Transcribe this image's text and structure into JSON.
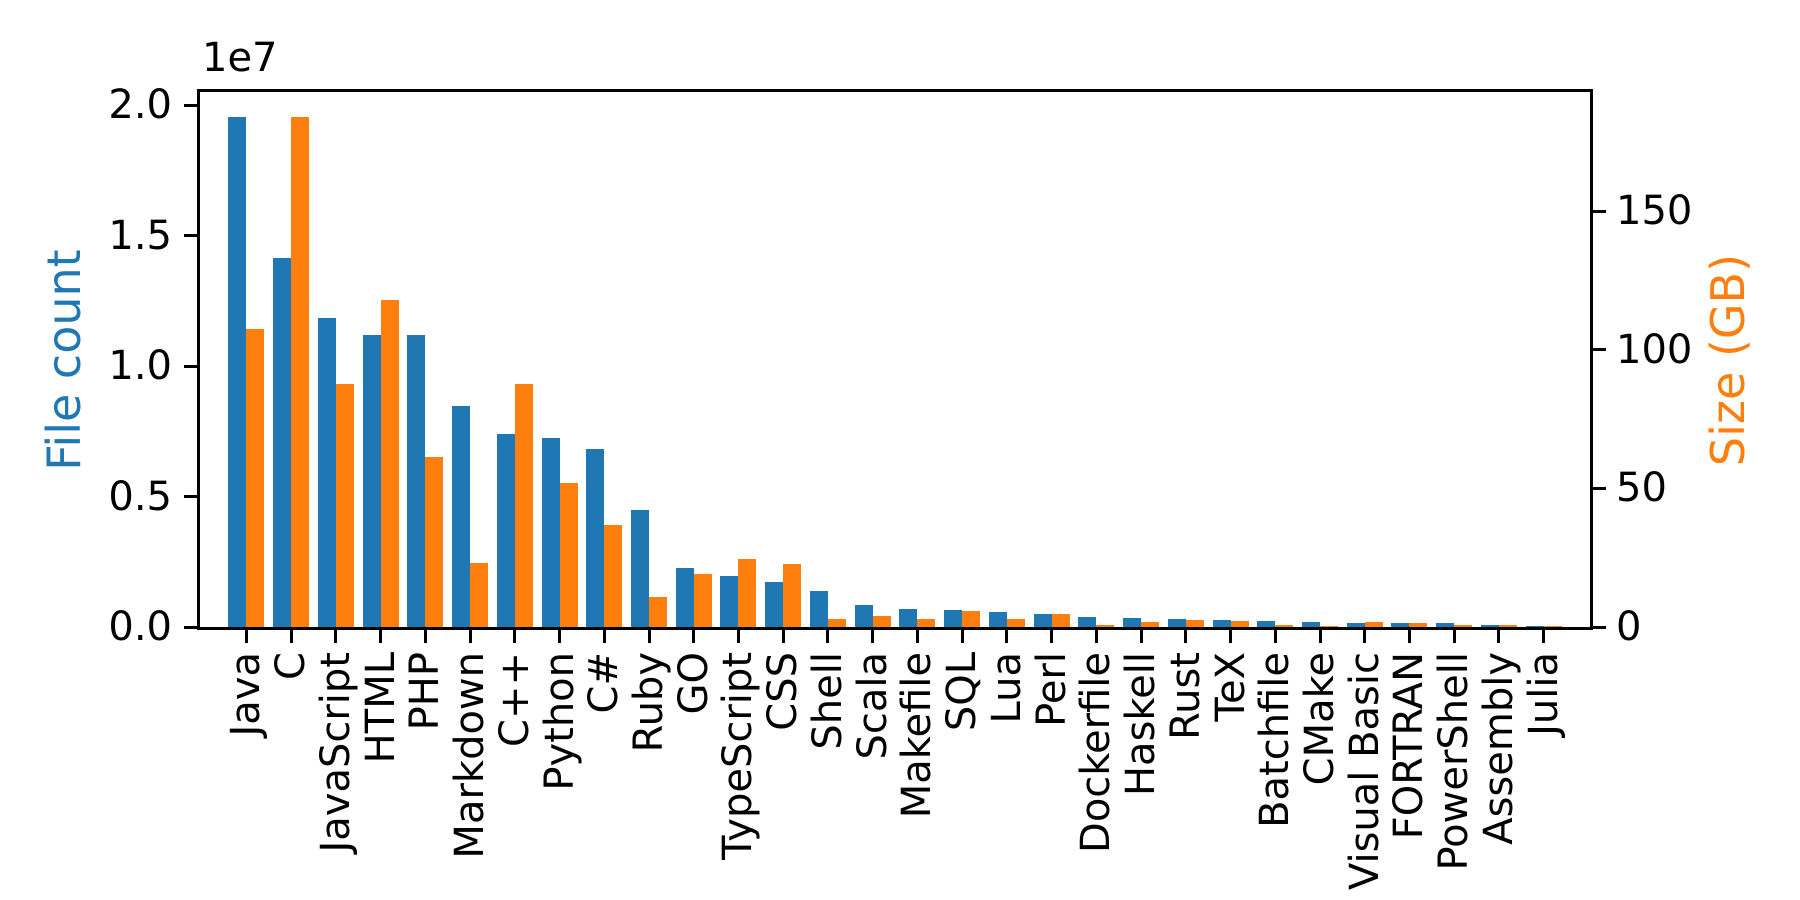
{
  "chart_data": {
    "type": "bar",
    "title": "",
    "xlabel": "",
    "grid": false,
    "legend": null,
    "background_color": "#ffffff",
    "spine_color": "#000000",
    "tick_label_color": "#000000",
    "categories": [
      "Java",
      "C",
      "JavaScript",
      "HTML",
      "PHP",
      "Markdown",
      "C++",
      "Python",
      "C#",
      "Ruby",
      "GO",
      "TypeScript",
      "CSS",
      "Shell",
      "Scala",
      "Makefile",
      "SQL",
      "Lua",
      "Perl",
      "Dockerfile",
      "Haskell",
      "Rust",
      "TeX",
      "Batchfile",
      "CMake",
      "Visual Basic",
      "FORTRAN",
      "PowerShell",
      "Assembly",
      "Julia"
    ],
    "series": [
      {
        "name": "File count",
        "axis": "left",
        "color": "#1f77b4",
        "values": [
          19548190,
          14143113,
          11839883,
          11178557,
          11177610,
          8464626,
          7380520,
          7226626,
          6811652,
          4473331,
          2265436,
          1940406,
          1734406,
          1385648,
          835755,
          679430,
          656671,
          578554,
          497949,
          366505,
          340623,
          322431,
          251015,
          236945,
          175282,
          155652,
          142038,
          136846,
          82905,
          58317
        ]
      },
      {
        "name": "Size (GB)",
        "axis": "right",
        "color": "#ff7f0e",
        "values": [
          107.7,
          183.83,
          87.82,
          118.12,
          61.41,
          23.09,
          87.73,
          52.03,
          36.83,
          10.95,
          19.28,
          24.59,
          22.67,
          3.01,
          3.87,
          2.92,
          5.67,
          2.81,
          4.7,
          0.71,
          1.85,
          2.68,
          2.15,
          0.7,
          0.54,
          1.91,
          1.62,
          0.69,
          0.78,
          0.29
        ]
      }
    ],
    "left_axis": {
      "label": "File count",
      "label_color": "#1f77b4",
      "offset_label": "1e7",
      "tick_labels": [
        "0.0",
        "0.5",
        "1.0",
        "1.5",
        "2.0"
      ],
      "tick_values": [
        0,
        5000000,
        10000000,
        15000000,
        20000000
      ],
      "ylim": [
        0,
        20500000
      ]
    },
    "right_axis": {
      "label": "Size (GB)",
      "label_color": "#ff7f0e",
      "tick_labels": [
        "0",
        "50",
        "100",
        "150"
      ],
      "tick_values": [
        0,
        50,
        100,
        150
      ],
      "ylim": [
        0,
        193
      ]
    },
    "xtick_rotation": 90
  }
}
